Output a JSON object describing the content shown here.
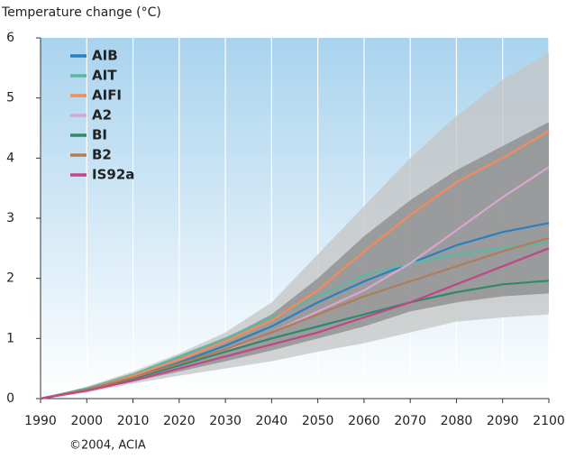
{
  "chart_data": {
    "type": "line",
    "y_axis_label": "Temperature change (°C)",
    "footnote": "©2004, ACIA",
    "x": [
      1990,
      2000,
      2010,
      2020,
      2030,
      2040,
      2050,
      2060,
      2070,
      2080,
      2090,
      2100
    ],
    "xlim": [
      1990,
      2100
    ],
    "xticks": [
      1990,
      2000,
      2010,
      2020,
      2030,
      2040,
      2050,
      2060,
      2070,
      2080,
      2090,
      2100
    ],
    "ylim": [
      0,
      6
    ],
    "yticks": [
      0,
      1,
      2,
      3,
      4,
      5,
      6
    ],
    "grid": true,
    "legend": "top-left",
    "bands": [
      {
        "color": "#c4c4c4",
        "upper": [
          0,
          0.2,
          0.45,
          0.75,
          1.1,
          1.6,
          2.4,
          3.2,
          4.0,
          4.7,
          5.3,
          5.75
        ],
        "lower": [
          0,
          0.1,
          0.25,
          0.38,
          0.5,
          0.62,
          0.78,
          0.92,
          1.1,
          1.28,
          1.35,
          1.4
        ]
      },
      {
        "color": "#8a8a8a",
        "upper": [
          0,
          0.18,
          0.42,
          0.7,
          1.0,
          1.4,
          2.0,
          2.7,
          3.3,
          3.8,
          4.2,
          4.6
        ],
        "lower": [
          0,
          0.12,
          0.28,
          0.45,
          0.62,
          0.8,
          1.0,
          1.2,
          1.45,
          1.6,
          1.7,
          1.75
        ]
      }
    ],
    "series": [
      {
        "name": "AIB",
        "color": "#2a7fc1",
        "values": [
          0,
          0.15,
          0.35,
          0.6,
          0.88,
          1.2,
          1.6,
          1.95,
          2.25,
          2.55,
          2.77,
          2.92
        ]
      },
      {
        "name": "AIT",
        "color": "#5bb8a0",
        "values": [
          0,
          0.17,
          0.4,
          0.7,
          1.0,
          1.35,
          1.7,
          2.05,
          2.25,
          2.4,
          2.5,
          2.6
        ]
      },
      {
        "name": "AIFI",
        "color": "#f58a5a",
        "values": [
          0,
          0.15,
          0.38,
          0.65,
          0.95,
          1.3,
          1.8,
          2.45,
          3.05,
          3.6,
          4.0,
          4.45
        ]
      },
      {
        "name": "A2",
        "color": "#d9a6d0",
        "values": [
          0,
          0.14,
          0.33,
          0.55,
          0.8,
          1.1,
          1.45,
          1.8,
          2.25,
          2.8,
          3.35,
          3.85
        ]
      },
      {
        "name": "BI",
        "color": "#2e8a6b",
        "values": [
          0,
          0.15,
          0.33,
          0.55,
          0.78,
          1.0,
          1.2,
          1.4,
          1.6,
          1.77,
          1.9,
          1.96
        ]
      },
      {
        "name": "B2",
        "color": "#b07c5a",
        "values": [
          0,
          0.15,
          0.35,
          0.58,
          0.82,
          1.1,
          1.4,
          1.7,
          1.95,
          2.2,
          2.45,
          2.67
        ]
      },
      {
        "name": "IS92a",
        "color": "#c0468a",
        "values": [
          0,
          0.13,
          0.3,
          0.5,
          0.7,
          0.9,
          1.1,
          1.35,
          1.6,
          1.9,
          2.2,
          2.5
        ]
      }
    ]
  }
}
